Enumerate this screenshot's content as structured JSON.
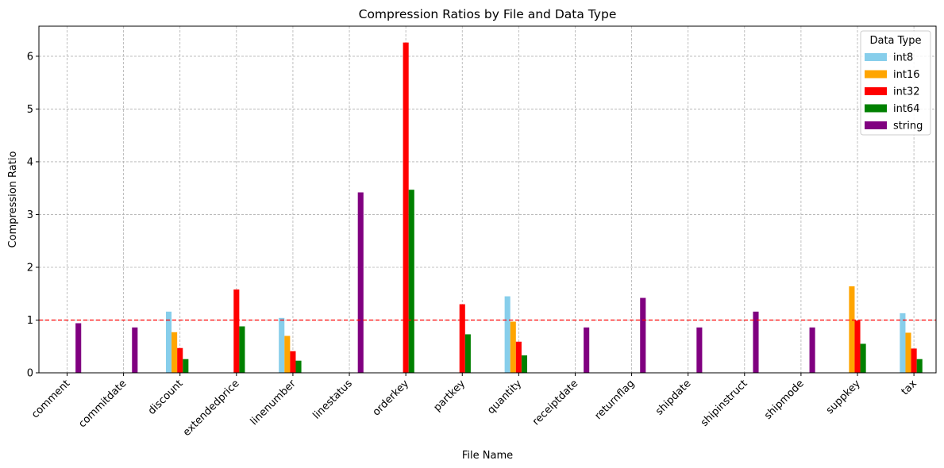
{
  "chart_data": {
    "type": "bar",
    "title": "Compression Ratios by File and Data Type",
    "xlabel": "File Name",
    "ylabel": "Compression Ratio",
    "ylim": [
      0,
      6.57
    ],
    "yticks": [
      0,
      1,
      2,
      3,
      4,
      5,
      6
    ],
    "grid": true,
    "reference_line": {
      "y": 1.0,
      "color": "#ff0000",
      "style": "dashed"
    },
    "legend": {
      "title": "Data Type",
      "placement": "top-right"
    },
    "categories": [
      "comment",
      "commitdate",
      "discount",
      "extendedprice",
      "linenumber",
      "linestatus",
      "orderkey",
      "partkey",
      "quantity",
      "receiptdate",
      "returnflag",
      "shipdate",
      "shipinstruct",
      "shipmode",
      "suppkey",
      "tax"
    ],
    "series": [
      {
        "name": "int8",
        "color": "#87ceeb",
        "values": [
          null,
          null,
          1.16,
          null,
          1.04,
          null,
          null,
          null,
          1.45,
          null,
          null,
          null,
          null,
          null,
          null,
          1.13
        ]
      },
      {
        "name": "int16",
        "color": "#ffa500",
        "values": [
          null,
          null,
          0.77,
          null,
          0.7,
          null,
          null,
          null,
          0.97,
          null,
          null,
          null,
          null,
          null,
          1.64,
          0.76
        ]
      },
      {
        "name": "int32",
        "color": "#ff0000",
        "values": [
          null,
          null,
          0.47,
          1.58,
          0.41,
          null,
          6.26,
          1.3,
          0.59,
          null,
          null,
          null,
          null,
          null,
          0.99,
          0.46
        ]
      },
      {
        "name": "int64",
        "color": "#008000",
        "values": [
          null,
          null,
          0.26,
          0.88,
          0.23,
          null,
          3.47,
          0.73,
          0.33,
          null,
          null,
          null,
          null,
          null,
          0.55,
          0.26
        ]
      },
      {
        "name": "string",
        "color": "#800080",
        "values": [
          0.94,
          0.86,
          null,
          null,
          null,
          3.42,
          null,
          null,
          null,
          0.86,
          1.42,
          0.86,
          1.16,
          0.86,
          null,
          null
        ]
      }
    ]
  }
}
